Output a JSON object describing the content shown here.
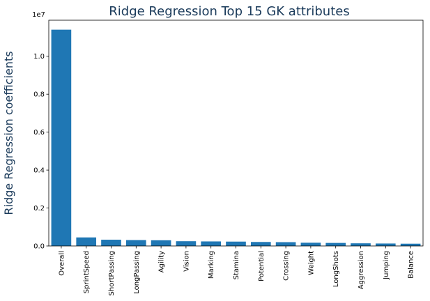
{
  "chart_data": {
    "type": "bar",
    "title": "Ridge Regression Top 15 GK attributes",
    "xlabel": "",
    "ylabel": "Ridge Regression coefficients",
    "offset_label": "1e7",
    "scale": 10000000,
    "ylim": [
      0,
      11900000
    ],
    "yticks": [
      0,
      2000000,
      4000000,
      6000000,
      8000000,
      10000000
    ],
    "ytick_labels": [
      "0.0",
      "0.2",
      "0.4",
      "0.6",
      "0.8",
      "1.0"
    ],
    "bar_color": "#1f77b4",
    "categories": [
      "Overall",
      "SprintSpeed",
      "ShortPassing",
      "LongPassing",
      "Agility",
      "Vision",
      "Marking",
      "Stamina",
      "Potential",
      "Crossing",
      "Weight",
      "LongShots",
      "Aggression",
      "Jumping",
      "Balance"
    ],
    "values": [
      11400000,
      450000,
      330000,
      310000,
      300000,
      250000,
      240000,
      230000,
      210000,
      200000,
      170000,
      160000,
      140000,
      130000,
      120000
    ]
  }
}
